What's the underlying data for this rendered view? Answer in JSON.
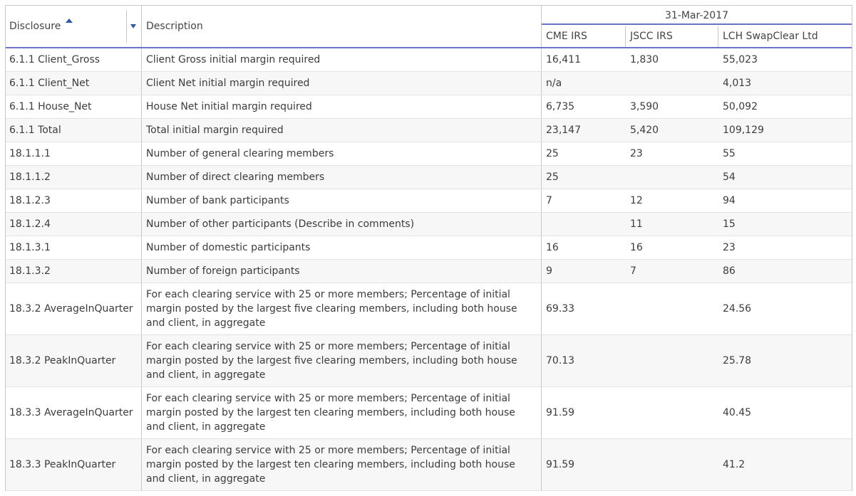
{
  "header": {
    "disclosure": "Disclosure",
    "description": "Description",
    "date": "31-Mar-2017",
    "columns": [
      "CME IRS",
      "JSCC IRS",
      "LCH SwapClear Ltd"
    ],
    "sort_icon": "sort-ascending-icon",
    "filter_icon": "dropdown-caret-icon"
  },
  "rows": [
    {
      "disclosure": "6.1.1 Client_Gross",
      "description": "Client Gross initial margin required",
      "cme": "16,411",
      "jscc": "1,830",
      "lch": "55,023"
    },
    {
      "disclosure": "6.1.1 Client_Net",
      "description": "Client Net initial margin required",
      "cme": "n/a",
      "jscc": "",
      "lch": "4,013"
    },
    {
      "disclosure": "6.1.1 House_Net",
      "description": "House Net initial margin required",
      "cme": "6,735",
      "jscc": "3,590",
      "lch": "50,092"
    },
    {
      "disclosure": "6.1.1 Total",
      "description": "Total initial margin required",
      "cme": "23,147",
      "jscc": "5,420",
      "lch": "109,129"
    },
    {
      "disclosure": "18.1.1.1",
      "description": "Number of general clearing members",
      "cme": "25",
      "jscc": "23",
      "lch": "55"
    },
    {
      "disclosure": "18.1.1.2",
      "description": "Number of direct clearing members",
      "cme": "25",
      "jscc": "",
      "lch": "54"
    },
    {
      "disclosure": "18.1.2.3",
      "description": "Number of bank participants",
      "cme": "7",
      "jscc": "12",
      "lch": "94"
    },
    {
      "disclosure": "18.1.2.4",
      "description": "Number of other participants (Describe in comments)",
      "cme": "",
      "jscc": "11",
      "lch": "15"
    },
    {
      "disclosure": "18.1.3.1",
      "description": "Number of domestic participants",
      "cme": "16",
      "jscc": "16",
      "lch": "23"
    },
    {
      "disclosure": "18.1.3.2",
      "description": "Number of foreign participants",
      "cme": "9",
      "jscc": "7",
      "lch": "86"
    },
    {
      "disclosure": "18.3.2 AverageInQuarter",
      "description": "For each clearing service with 25 or more members; Percentage of initial margin posted by the largest five clearing members, including both house and client, in aggregate",
      "cme": "69.33",
      "jscc": "",
      "lch": "24.56"
    },
    {
      "disclosure": "18.3.2 PeakInQuarter",
      "description": "For each clearing service with 25 or more members; Percentage of initial margin posted by the largest five clearing members, including both house and client, in aggregate",
      "cme": "70.13",
      "jscc": "",
      "lch": "25.78"
    },
    {
      "disclosure": "18.3.3 AverageInQuarter",
      "description": "For each clearing service with 25 or more members; Percentage of initial margin posted by the largest ten clearing members, including both house and client, in aggregate",
      "cme": "91.59",
      "jscc": "",
      "lch": "40.45"
    },
    {
      "disclosure": "18.3.3 PeakInQuarter",
      "description": "For each clearing service with 25 or more members; Percentage of initial margin posted by the largest ten clearing members, including both house and client, in aggregate",
      "cme": "91.59",
      "jscc": "",
      "lch": "41.2"
    }
  ]
}
